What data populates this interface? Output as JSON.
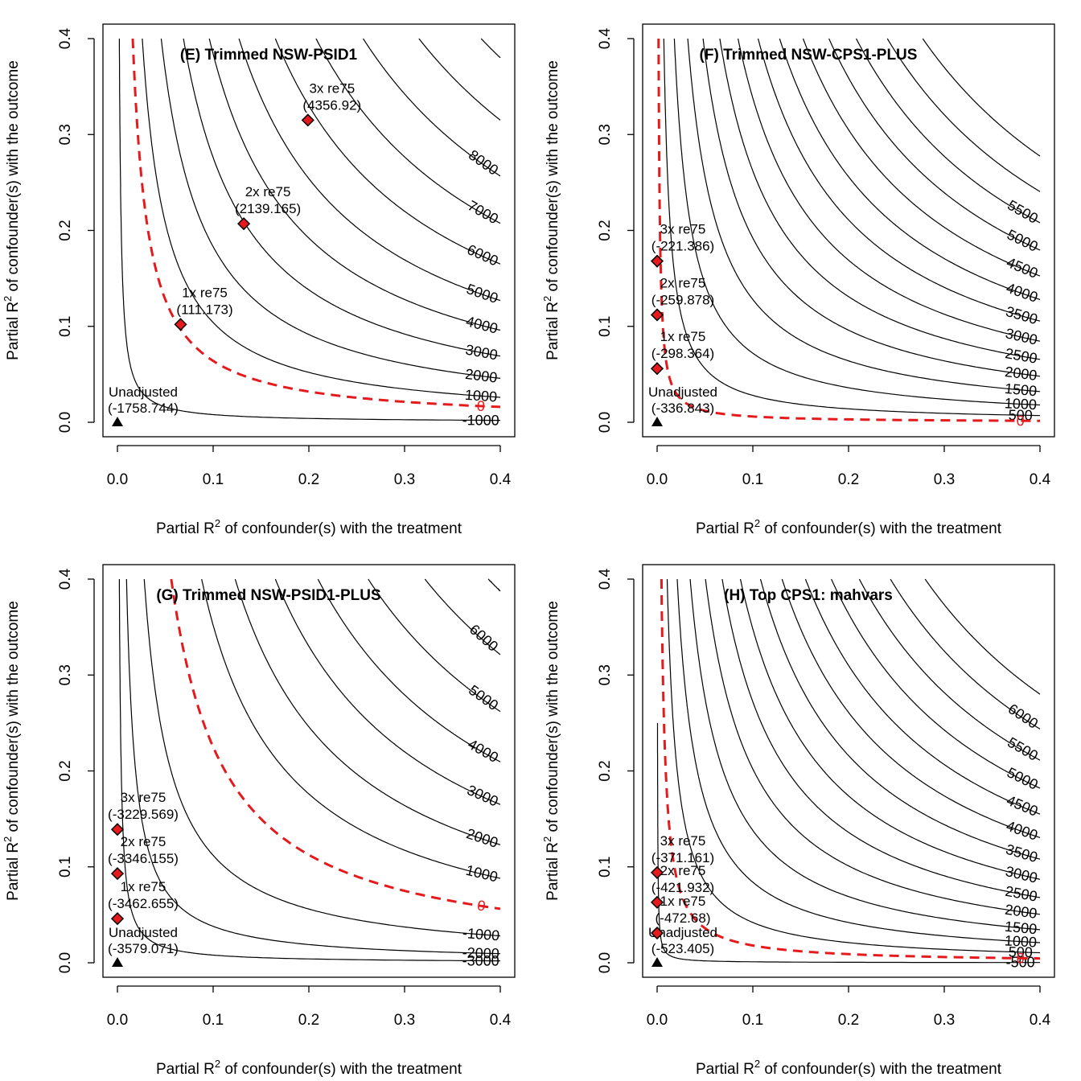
{
  "figure": {
    "xlabel_prefix": "Partial R",
    "xlabel_sup": "2",
    "xlabel_suffix": " of confounder(s) with the treatment",
    "ylabel_prefix": "Partial R",
    "ylabel_sup": "2",
    "ylabel_suffix": " of confounder(s) with the outcome"
  },
  "chart_data": [
    {
      "type": "contour",
      "title": "(E) Trimmed NSW-PSID1",
      "xlim": [
        0,
        0.4
      ],
      "ylim": [
        0,
        0.4
      ],
      "xticks": [
        "0.0",
        "0.1",
        "0.2",
        "0.3",
        "0.4"
      ],
      "yticks": [
        "0.0",
        "0.1",
        "0.2",
        "0.3",
        "0.4"
      ],
      "unadjusted": {
        "label": "Unadjusted",
        "value": "(-1758.744)",
        "x": 0,
        "y": 0
      },
      "contours": [
        {
          "level": "-1000",
          "k": 0.0008
        },
        {
          "level": "1000",
          "k": 0.0104
        },
        {
          "level": "2000",
          "k": 0.0183
        },
        {
          "level": "3000",
          "k": 0.0276
        },
        {
          "level": "4000",
          "k": 0.0384
        },
        {
          "level": "5000",
          "k": 0.0508
        },
        {
          "level": "6000",
          "k": 0.066
        },
        {
          "level": "7000",
          "k": 0.083
        },
        {
          "level": "8000",
          "k": 0.1027
        },
        {
          "level": "",
          "k": 0.126
        },
        {
          "level": "",
          "k": 0.152
        }
      ],
      "threshold": {
        "level": "0",
        "k": 0.0064
      },
      "benchmarks": [
        {
          "label": "1x re75",
          "value": "(111.173)",
          "x": 0.066,
          "y": 0.102
        },
        {
          "label": "2x re75",
          "value": "(2139.165)",
          "x": 0.132,
          "y": 0.207
        },
        {
          "label": "3x re75",
          "value": "(4356.92)",
          "x": 0.199,
          "y": 0.315
        }
      ]
    },
    {
      "type": "contour",
      "title": "(F) Trimmed NSW-CPS1-PLUS",
      "xlim": [
        0,
        0.4
      ],
      "ylim": [
        0,
        0.4
      ],
      "xticks": [
        "0.0",
        "0.1",
        "0.2",
        "0.3",
        "0.4"
      ],
      "yticks": [
        "0.0",
        "0.1",
        "0.2",
        "0.3",
        "0.4"
      ],
      "unadjusted": {
        "label": "Unadjusted",
        "value": "(-336.843)",
        "x": 0,
        "y": 0
      },
      "contours": [
        {
          "level": "500",
          "k": 0.0028
        },
        {
          "level": "1000",
          "k": 0.0072
        },
        {
          "level": "1500",
          "k": 0.0128
        },
        {
          "level": "2000",
          "k": 0.0192
        },
        {
          "level": "2500",
          "k": 0.0262
        },
        {
          "level": "3000",
          "k": 0.0338
        },
        {
          "level": "3500",
          "k": 0.0422
        },
        {
          "level": "4000",
          "k": 0.0512
        },
        {
          "level": "4500",
          "k": 0.061
        },
        {
          "level": "5000",
          "k": 0.0718
        },
        {
          "level": "5500",
          "k": 0.0832
        },
        {
          "level": "",
          "k": 0.0962
        },
        {
          "level": "",
          "k": 0.111
        }
      ],
      "threshold": {
        "level": "0",
        "k": 0.0006
      },
      "benchmarks": [
        {
          "label": "1x re75",
          "value": "(-298.364)",
          "x": 0,
          "y": 0.056
        },
        {
          "label": "2x re75",
          "value": "(-259.878)",
          "x": 0,
          "y": 0.112
        },
        {
          "label": "3x re75",
          "value": "(-221.386)",
          "x": 0,
          "y": 0.168
        }
      ]
    },
    {
      "type": "contour",
      "title": "(G) Trimmed NSW-PSID1-PLUS",
      "xlim": [
        0,
        0.4
      ],
      "ylim": [
        0,
        0.4
      ],
      "xticks": [
        "0.0",
        "0.1",
        "0.2",
        "0.3",
        "0.4"
      ],
      "yticks": [
        "0.0",
        "0.1",
        "0.2",
        "0.3",
        "0.4"
      ],
      "unadjusted": {
        "label": "Unadjusted",
        "value": "(-3579.071)",
        "x": 0,
        "y": 0
      },
      "contours": [
        {
          "level": "-3000",
          "k": 0.0008
        },
        {
          "level": "-2000",
          "k": 0.0038
        },
        {
          "level": "-1000",
          "k": 0.0112
        },
        {
          "level": "1000",
          "k": 0.0352
        },
        {
          "level": "2000",
          "k": 0.0492
        },
        {
          "level": "3000",
          "k": 0.066
        },
        {
          "level": "4000",
          "k": 0.0838
        },
        {
          "level": "5000",
          "k": 0.1048
        },
        {
          "level": "6000",
          "k": 0.1285
        },
        {
          "level": "",
          "k": 0.155
        }
      ],
      "threshold": {
        "level": "0",
        "k": 0.0225
      },
      "benchmarks": [
        {
          "label": "1x re75",
          "value": "(-3462.655)",
          "x": 0,
          "y": 0.046
        },
        {
          "label": "2x re75",
          "value": "(-3346.155)",
          "x": 0,
          "y": 0.093
        },
        {
          "label": "3x re75",
          "value": "(-3229.569)",
          "x": 0,
          "y": 0.139
        }
      ]
    },
    {
      "type": "contour",
      "title": "(H) Top CPS1: mahvars",
      "xlim": [
        0,
        0.4
      ],
      "ylim": [
        0,
        0.4
      ],
      "xticks": [
        "0.0",
        "0.1",
        "0.2",
        "0.3",
        "0.4"
      ],
      "yticks": [
        "0.0",
        "0.1",
        "0.2",
        "0.3",
        "0.4"
      ],
      "unadjusted": {
        "label": "Unadjusted",
        "value": "(-523.405)",
        "x": 0,
        "y": 0
      },
      "contours": [
        {
          "level": "-500",
          "k": 0.0001
        },
        {
          "level": "500",
          "k": 0.0042
        },
        {
          "level": "1000",
          "k": 0.0084
        },
        {
          "level": "1500",
          "k": 0.0138
        },
        {
          "level": "2000",
          "k": 0.0202
        },
        {
          "level": "2500",
          "k": 0.0272
        },
        {
          "level": "3000",
          "k": 0.0348
        },
        {
          "level": "3500",
          "k": 0.0432
        },
        {
          "level": "4000",
          "k": 0.0522
        },
        {
          "level": "4500",
          "k": 0.062
        },
        {
          "level": "5000",
          "k": 0.0728
        },
        {
          "level": "5500",
          "k": 0.0845
        },
        {
          "level": "6000",
          "k": 0.0975
        },
        {
          "level": "",
          "k": 0.112
        }
      ],
      "threshold": {
        "level": "0",
        "k": 0.0018
      },
      "benchmarks": [
        {
          "label": "1x re75",
          "value": "(-472.68)",
          "x": 0,
          "y": 0.031
        },
        {
          "label": "2x re75",
          "value": "(-421.932)",
          "x": 0,
          "y": 0.063
        },
        {
          "label": "3x re75",
          "value": "(-371.161)",
          "x": 0,
          "y": 0.094
        }
      ]
    }
  ]
}
